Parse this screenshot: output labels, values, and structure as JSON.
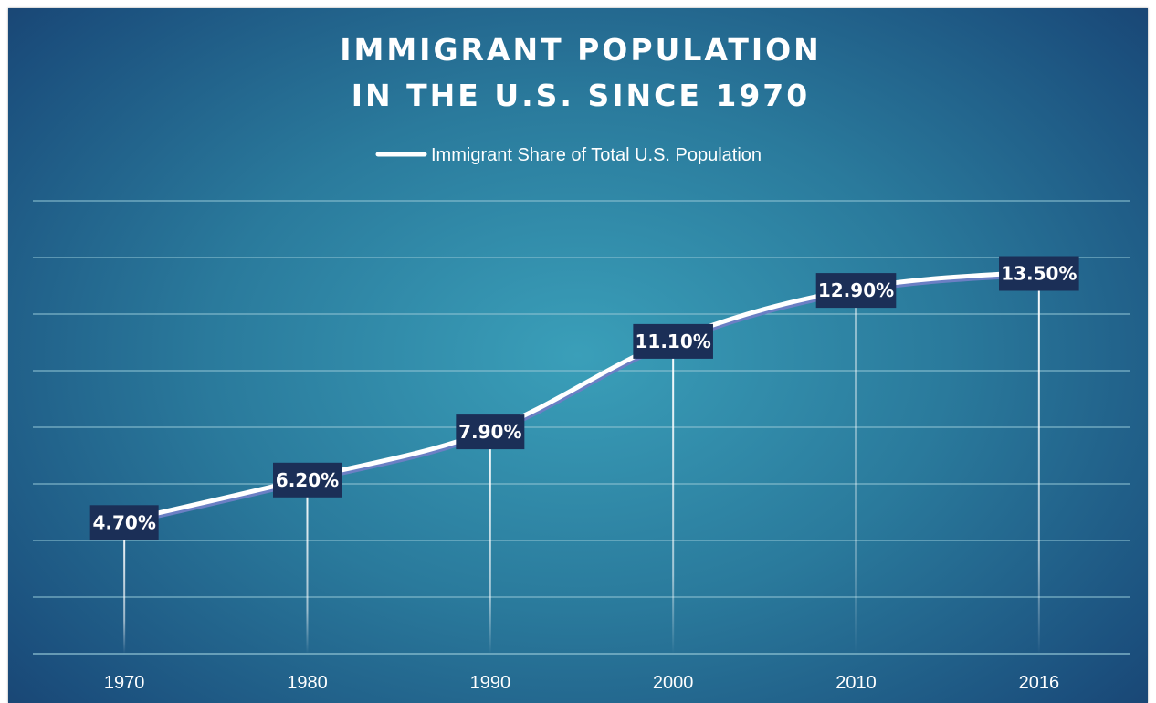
{
  "chart_data": {
    "type": "line",
    "title_lines": [
      "IMMIGRANT POPULATION",
      "IN THE U.S. SINCE 1970"
    ],
    "title": "IMMIGRANT POPULATION IN THE U.S. SINCE 1970",
    "legend": {
      "position": "top"
    },
    "categories": [
      "1970",
      "1980",
      "1990",
      "2000",
      "2010",
      "2016"
    ],
    "series": [
      {
        "name": "Immigrant Share of Total U.S. Population",
        "values": [
          4.7,
          6.2,
          7.9,
          11.1,
          12.9,
          13.5
        ],
        "labels": [
          "4.70%",
          "6.20%",
          "7.90%",
          "11.10%",
          "12.90%",
          "13.50%"
        ],
        "color": "#ffffff",
        "shadow_color": "#6b7fc4"
      }
    ],
    "ylim": [
      0,
      16
    ],
    "y_gridline_step": 2,
    "y_tick_labels_visible": false,
    "grid": true,
    "drop_lines": true,
    "colors": {
      "label_box": "#1b2f57",
      "gridline": "#8fc3d4",
      "background_center": "#3a9fb9",
      "background_edge": "#193f6e"
    }
  }
}
